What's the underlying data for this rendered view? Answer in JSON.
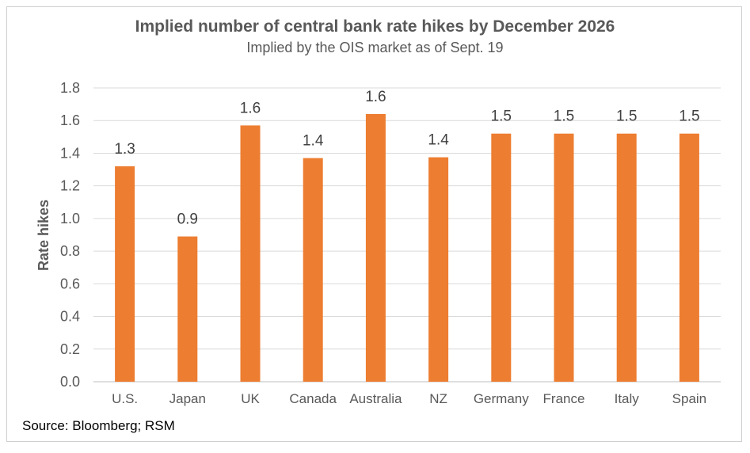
{
  "chart_data": {
    "type": "bar",
    "title": "Implied number of central bank rate hikes by December 2026",
    "subtitle": "Implied by the OIS market as of Sept. 19",
    "ylabel": "Rate hikes",
    "xlabel": "",
    "categories": [
      "U.S.",
      "Japan",
      "UK",
      "Canada",
      "Australia",
      "NZ",
      "Germany",
      "France",
      "Italy",
      "Spain"
    ],
    "values": [
      1.32,
      0.89,
      1.57,
      1.37,
      1.64,
      1.375,
      1.52,
      1.52,
      1.52,
      1.52
    ],
    "data_labels": [
      "1.3",
      "0.9",
      "1.6",
      "1.4",
      "1.6",
      "1.4",
      "1.5",
      "1.5",
      "1.5",
      "1.5"
    ],
    "ylim": [
      0,
      1.8
    ],
    "yticks": [
      "0.0",
      "0.2",
      "0.4",
      "0.6",
      "0.8",
      "1.0",
      "1.2",
      "1.4",
      "1.6",
      "1.8"
    ],
    "grid": true,
    "legend": "none",
    "bar_color": "#ED7D31",
    "grid_color": "#D9D9D9"
  },
  "source": "Source: Bloomberg; RSM"
}
